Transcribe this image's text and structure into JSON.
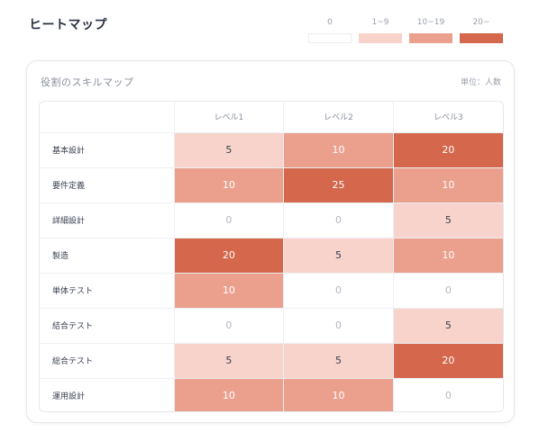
{
  "page_title": "ヒートマップ",
  "legend": [
    {
      "label": "0",
      "color": "#ffffff"
    },
    {
      "label": "1~9",
      "color": "#f7d3cb"
    },
    {
      "label": "10~19",
      "color": "#eba08d"
    },
    {
      "label": "20~",
      "color": "#d4674c"
    }
  ],
  "card": {
    "title": "役割のスキルマップ",
    "unit": "単位：人数"
  },
  "table": {
    "columns": [
      "",
      "レベル1",
      "レベル2",
      "レベル3"
    ],
    "rows": [
      {
        "label": "基本設計",
        "values": [
          "5",
          "10",
          "20"
        ]
      },
      {
        "label": "要件定義",
        "values": [
          "10",
          "25",
          "10"
        ]
      },
      {
        "label": "詳細設計",
        "values": [
          "0",
          "0",
          "5"
        ]
      },
      {
        "label": "製造",
        "values": [
          "20",
          "5",
          "10"
        ]
      },
      {
        "label": "単体テスト",
        "values": [
          "10",
          "0",
          "0"
        ]
      },
      {
        "label": "結合テスト",
        "values": [
          "0",
          "0",
          "5"
        ]
      },
      {
        "label": "総合テスト",
        "values": [
          "5",
          "5",
          "20"
        ]
      },
      {
        "label": "運用設計",
        "values": [
          "10",
          "10",
          "0"
        ]
      }
    ]
  },
  "colors": {
    "zero_text": "#b3b7c0",
    "light_text": "#3a4050",
    "dark_text": "#ffffff"
  }
}
